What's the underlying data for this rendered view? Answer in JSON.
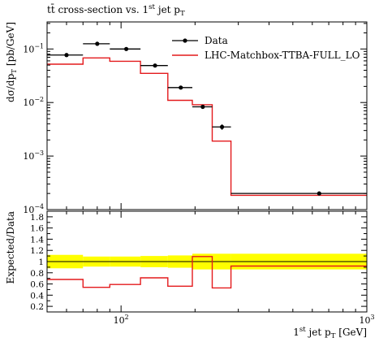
{
  "chart_data": [
    {
      "type": "line",
      "title": "tt̄ cross-section vs. 1st jet pT",
      "title_parts": {
        "main": "tt̄ cross-section vs. 1",
        "sup": "st",
        "mid": " jet p",
        "sub": "T"
      },
      "xlabel": "1st jet pT [GeV]",
      "xlabel_parts": {
        "pre": "1",
        "sup": "st",
        "mid": " jet p",
        "sub": "T",
        "post": " [GeV]"
      },
      "ylabel": "dσ/dpT [pb/GeV]",
      "ylabel_parts": {
        "pre": "dσ/dp",
        "sub": "T",
        "post": " [pb/GeV]"
      },
      "xscale": "log",
      "yscale": "log",
      "xlim": [
        50,
        1000
      ],
      "ylim": [
        0.0001,
        0.32
      ],
      "x_tick_labels": [
        {
          "value": 100,
          "label": "10",
          "sup": "2"
        },
        {
          "value": 1000,
          "label": "10",
          "sup": "3"
        }
      ],
      "y_tick_labels": [
        {
          "value": 0.1,
          "label": "10",
          "sup": "−1"
        },
        {
          "value": 0.01,
          "label": "10",
          "sup": "−2"
        },
        {
          "value": 0.001,
          "label": "10",
          "sup": "−3"
        },
        {
          "value": 0.0001,
          "label": "10",
          "sup": "−4"
        }
      ],
      "bin_edges": [
        50,
        70,
        90,
        120,
        155,
        195,
        235,
        280,
        1000
      ],
      "series": [
        {
          "name": "Data",
          "style": "points",
          "color": "#000000",
          "x": [
            60,
            80,
            105,
            137.5,
            175,
            215,
            257.5,
            640
          ],
          "values": [
            0.077,
            0.125,
            0.1,
            0.049,
            0.019,
            0.0083,
            0.0035,
            0.0002
          ],
          "y_err": [
            0.004,
            0.006,
            0.005,
            0.003,
            0.0012,
            0.0006,
            0.0004,
            1.5e-05
          ]
        },
        {
          "name": "LHC-Matchbox-TTBA-FULL_LO",
          "style": "histogram",
          "color": "#e41a1c",
          "values": [
            0.052,
            0.068,
            0.059,
            0.035,
            0.011,
            0.0091,
            0.0019,
            0.000185
          ]
        }
      ],
      "legend_position": "top-right",
      "legend_labels": [
        "Data",
        "LHC-Matchbox-TTBA-FULL_LO"
      ]
    },
    {
      "type": "line",
      "ylabel": "Expected/Data",
      "xscale": "log",
      "xlim": [
        50,
        1000
      ],
      "ylim": [
        0.1,
        1.9
      ],
      "y_tick_labels": [
        "0.2",
        "0.4",
        "0.6",
        "0.8",
        "1",
        "1.2",
        "1.4",
        "1.6",
        "1.8"
      ],
      "y_tick_values": [
        0.2,
        0.4,
        0.6,
        0.8,
        1.0,
        1.2,
        1.4,
        1.6,
        1.8
      ],
      "bin_edges": [
        50,
        70,
        90,
        120,
        155,
        195,
        235,
        280,
        1000
      ],
      "band": {
        "name": "Data uncertainty",
        "color": "#ffff00",
        "low": [
          0.88,
          0.91,
          0.91,
          0.9,
          0.89,
          0.86,
          0.86,
          0.86
        ],
        "high": [
          1.12,
          1.09,
          1.09,
          1.1,
          1.11,
          1.14,
          1.14,
          1.14
        ]
      },
      "reference_line": {
        "value": 1.0,
        "color": "#000000"
      },
      "series": [
        {
          "name": "LHC-Matchbox-TTBA-FULL_LO / Data",
          "style": "histogram",
          "color": "#e41a1c",
          "values": [
            0.68,
            0.54,
            0.59,
            0.71,
            0.56,
            1.09,
            0.53,
            0.92
          ]
        }
      ]
    }
  ]
}
